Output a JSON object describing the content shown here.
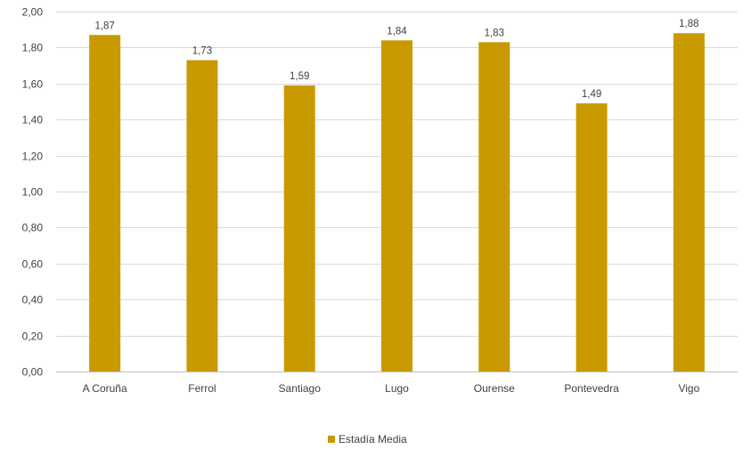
{
  "chart_data": {
    "type": "bar",
    "categories": [
      "A Coruña",
      "Ferrol",
      "Santiago",
      "Lugo",
      "Ourense",
      "Pontevedra",
      "Vigo"
    ],
    "series": [
      {
        "name": "Estadía Media",
        "values": [
          1.87,
          1.73,
          1.59,
          1.84,
          1.83,
          1.49,
          1.88
        ],
        "data_labels": [
          "1,87",
          "1,73",
          "1,59",
          "1,84",
          "1,83",
          "1,49",
          "1,88"
        ],
        "color": "#C89A00"
      }
    ],
    "ylim": [
      0,
      2
    ],
    "yticks": [
      0,
      0.2,
      0.4,
      0.6,
      0.8,
      1.0,
      1.2,
      1.4,
      1.6,
      1.8,
      2.0
    ],
    "ytick_labels": [
      "0,00",
      "0,20",
      "0,40",
      "0,60",
      "0,80",
      "1,00",
      "1,20",
      "1,40",
      "1,60",
      "1,80",
      "2,00"
    ],
    "grid": true,
    "legend": {
      "position": "bottom",
      "label": "Estadía Media"
    },
    "colors": {
      "bar": "#C89A00",
      "grid": "#D9D9D9",
      "axis": "#BFBFBF",
      "text": "#404040"
    }
  }
}
